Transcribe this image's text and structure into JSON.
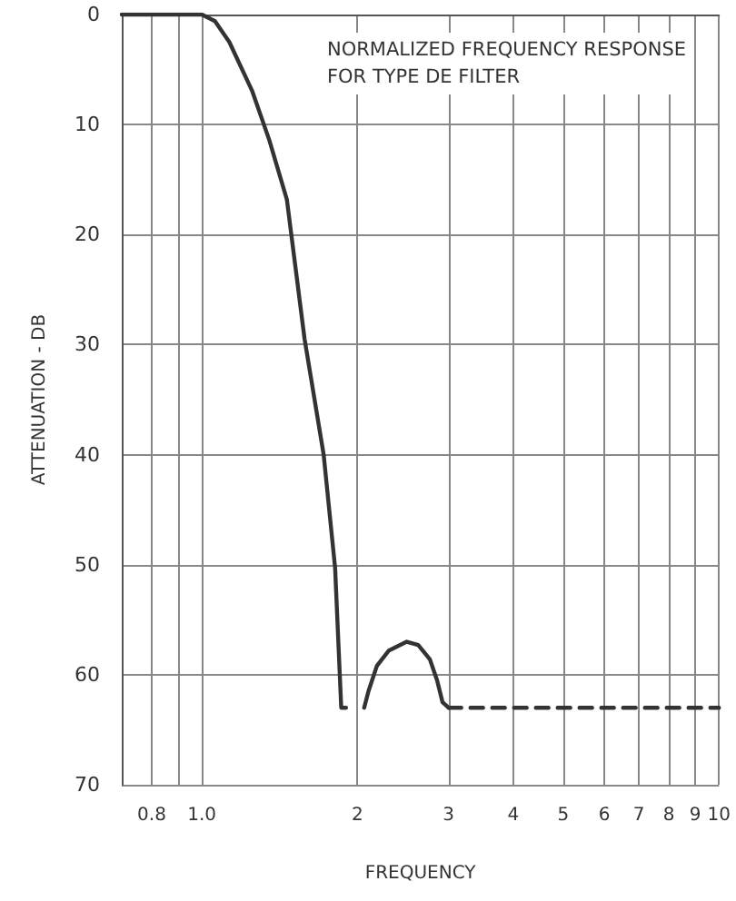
{
  "chart_data": {
    "type": "line",
    "title": "NORMALIZED FREQUENCY RESPONSE\nFOR TYPE DE FILTER",
    "xlabel": "FREQUENCY",
    "ylabel": "ATTENUATION - DB",
    "log": "x",
    "grid": true,
    "marker": "none",
    "xlim": [
      0.7,
      10
    ],
    "xticks": [
      {
        "value": 0.8,
        "label": "0.8"
      },
      {
        "value": 0.9,
        "label": null
      },
      {
        "value": 1,
        "label": "1.0"
      },
      2,
      3,
      4,
      5,
      6,
      7,
      8,
      9,
      10
    ],
    "ylim": [
      70,
      0
    ],
    "yticks": [
      0,
      10,
      20,
      30,
      40,
      50,
      60,
      70
    ],
    "series": [
      {
        "color": "#333333",
        "line_style": "solid",
        "x": [
          0.7,
          0.9,
          1.0,
          1.06,
          1.13,
          1.25,
          1.35,
          1.46,
          1.58,
          1.72,
          1.81,
          1.86,
          1.9,
          1.98,
          2.06,
          2.1,
          2.18,
          2.3,
          2.49,
          2.62,
          2.76,
          2.85,
          2.92,
          3.0
        ],
        "values": [
          0,
          0,
          0,
          0.6,
          2.5,
          6.9,
          11.4,
          16.8,
          29.5,
          40,
          50.3,
          63,
          63,
          null,
          63,
          61.5,
          59.2,
          57.8,
          57,
          57.3,
          58.6,
          60.5,
          62.5,
          63
        ]
      },
      {
        "color": "#333333",
        "line_style": "dashed",
        "x": [
          3.0,
          10
        ],
        "values": [
          63,
          63
        ]
      }
    ]
  }
}
